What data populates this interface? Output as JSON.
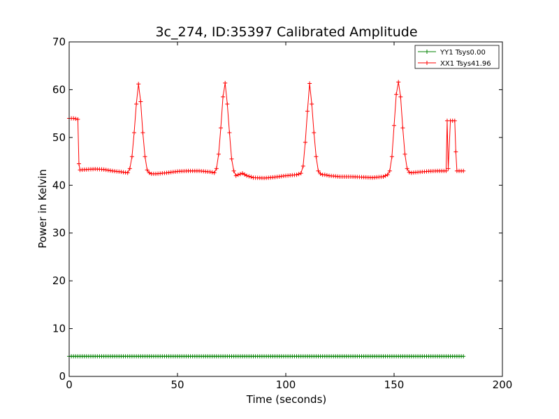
{
  "chart_data": {
    "type": "line",
    "title": "3c_274, ID:35397 Calibrated Amplitude",
    "xlabel": "Time (seconds)",
    "ylabel": "Power in Kelvin",
    "xlim": [
      0,
      200
    ],
    "ylim": [
      0,
      70
    ],
    "xticks": [
      0,
      50,
      100,
      150,
      200
    ],
    "yticks": [
      0,
      10,
      20,
      30,
      40,
      50,
      60,
      70
    ],
    "grid": false,
    "legend_position": "top-right",
    "series": [
      {
        "name": "YY1 Tsys0.00",
        "color": "#008000",
        "marker": "+",
        "x": [
          0,
          10,
          20,
          40,
          60,
          80,
          100,
          120,
          140,
          160,
          174,
          182
        ],
        "y": [
          4.2,
          4.2,
          4.2,
          4.2,
          4.2,
          4.2,
          4.2,
          4.2,
          4.2,
          4.2,
          4.2,
          4.2
        ]
      },
      {
        "name": "XX1 Tsys41.96",
        "color": "#ff0000",
        "marker": "+",
        "x": [
          0,
          2,
          4,
          4.5,
          5,
          8,
          12,
          16,
          20,
          24,
          27,
          28,
          29,
          30,
          31,
          32,
          33,
          34,
          35,
          36,
          37,
          38,
          40,
          45,
          50,
          55,
          60,
          65,
          67,
          68,
          69,
          70,
          71,
          72,
          73,
          74,
          75,
          76,
          77,
          78,
          80,
          82,
          85,
          90,
          95,
          100,
          105,
          107,
          108,
          109,
          110,
          111,
          112,
          113,
          114,
          115,
          116,
          117,
          118,
          120,
          125,
          130,
          135,
          140,
          145,
          147,
          148,
          149,
          150,
          151,
          152,
          153,
          154,
          155,
          156,
          157,
          158,
          160,
          165,
          170,
          173,
          174,
          174.5,
          175,
          176,
          177,
          178,
          178.5,
          179,
          180,
          182
        ],
        "y": [
          54.0,
          54.0,
          53.8,
          44.5,
          43.2,
          43.3,
          43.4,
          43.3,
          43.0,
          42.8,
          42.6,
          43.5,
          46.0,
          51.0,
          57.0,
          61.2,
          57.5,
          51.0,
          46.0,
          43.2,
          42.6,
          42.4,
          42.4,
          42.6,
          42.9,
          43.0,
          43.0,
          42.8,
          42.6,
          43.5,
          46.5,
          52.0,
          58.5,
          61.4,
          57.0,
          51.0,
          45.5,
          43.0,
          42.0,
          42.2,
          42.5,
          42.0,
          41.6,
          41.5,
          41.7,
          42.0,
          42.2,
          42.5,
          44.0,
          49.0,
          55.5,
          61.3,
          57.0,
          51.0,
          46.0,
          43.0,
          42.4,
          42.2,
          42.2,
          42.0,
          41.8,
          41.8,
          41.7,
          41.6,
          41.8,
          42.2,
          43.0,
          46.0,
          52.5,
          59.0,
          61.6,
          58.5,
          52.0,
          46.5,
          43.5,
          42.7,
          42.6,
          42.7,
          42.9,
          43.0,
          43.0,
          43.0,
          53.5,
          43.5,
          53.5,
          53.5,
          53.5,
          47.0,
          43.0,
          43.0,
          43.0
        ]
      }
    ]
  }
}
